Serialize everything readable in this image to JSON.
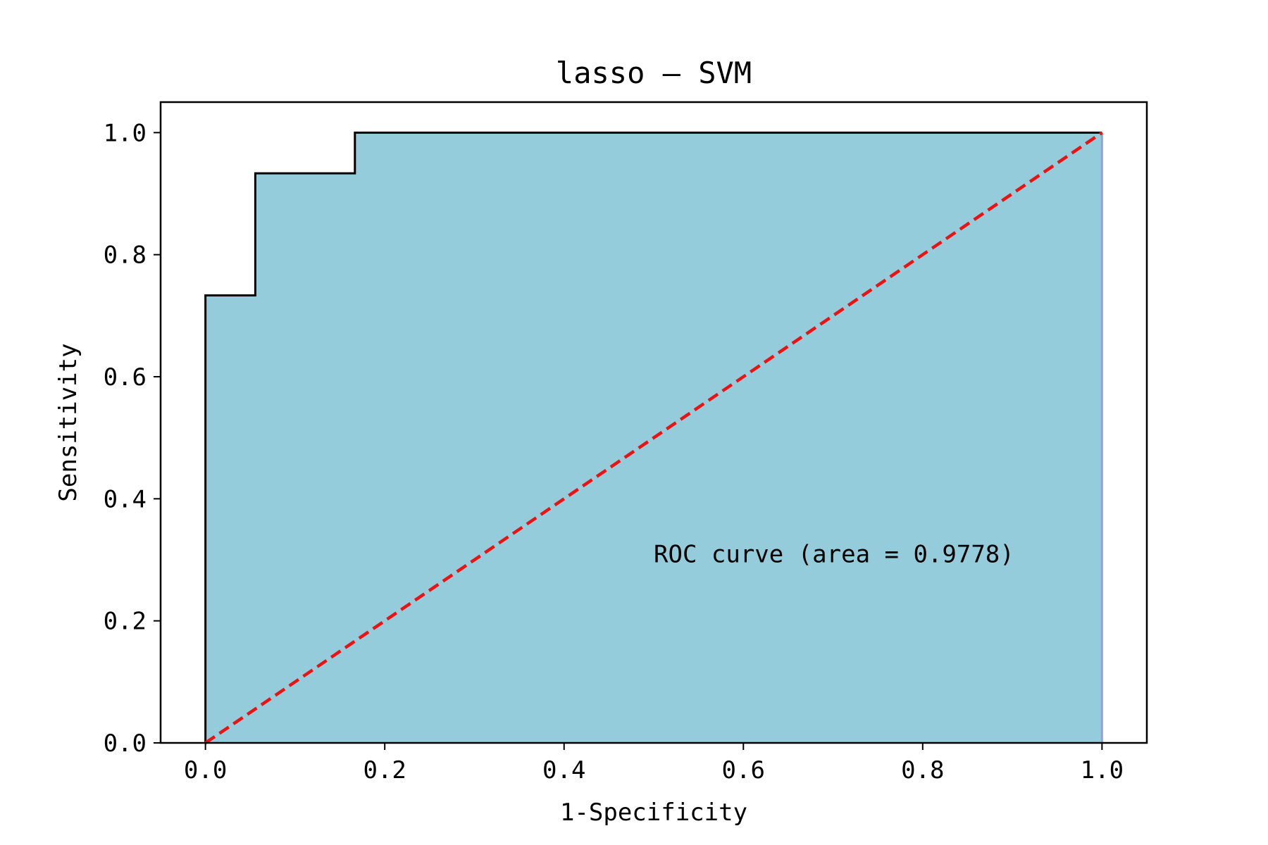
{
  "chart_data": {
    "type": "area",
    "title": "lasso — SVM",
    "xlabel": "1-Specificity",
    "ylabel": "Sensitivity",
    "xlim": [
      -0.05,
      1.05
    ],
    "ylim": [
      0,
      1.05
    ],
    "xticks": [
      0.0,
      0.2,
      0.4,
      0.6,
      0.8,
      1.0
    ],
    "yticks": [
      0.0,
      0.2,
      0.4,
      0.6,
      0.8,
      1.0
    ],
    "xtick_labels": [
      "0.0",
      "0.2",
      "0.4",
      "0.6",
      "0.8",
      "1.0"
    ],
    "ytick_labels": [
      "0.0",
      "0.2",
      "0.4",
      "0.6",
      "0.8",
      "1.0"
    ],
    "grid": false,
    "series": [
      {
        "kind": "roc_step",
        "fill_color": "#94ccdb",
        "line_color": "#000000",
        "x": [
          0.0,
          0.0,
          0.0556,
          0.0556,
          0.1667,
          0.1667,
          1.0
        ],
        "y": [
          0.0,
          0.7333,
          0.7333,
          0.9333,
          0.9333,
          1.0,
          1.0
        ]
      },
      {
        "kind": "diagonal",
        "line_color": "#ee1111",
        "dash": true,
        "x": [
          0.0,
          1.0
        ],
        "y": [
          0.0,
          1.0
        ]
      }
    ],
    "annotation": {
      "text": "ROC curve (area = 0.9778)",
      "x": 0.5,
      "y": 0.31
    }
  }
}
